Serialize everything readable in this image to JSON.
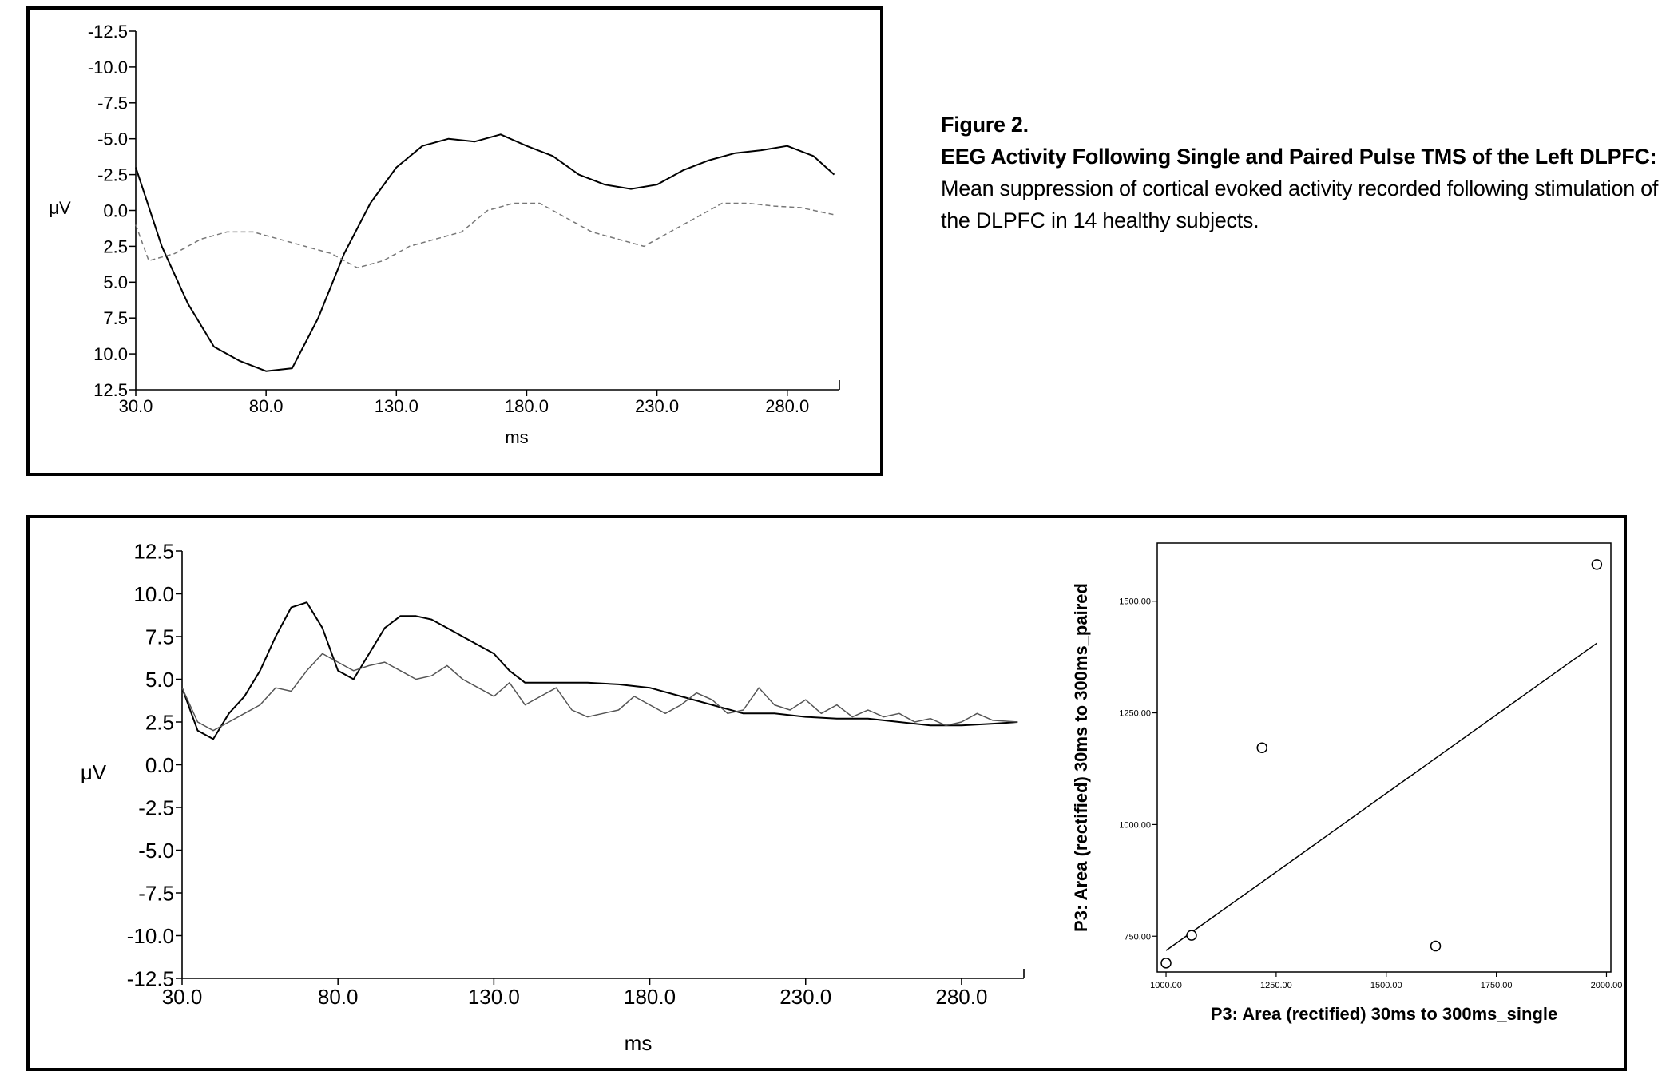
{
  "caption": {
    "figure_label": "Figure 2.",
    "title": "EEG Activity Following Single and Paired Pulse TMS of the Left DLPFC:",
    "text": "Mean suppression of cortical evoked activity recorded following stimulation of the DLPFC in 14 healthy subjects."
  },
  "chart_data": [
    {
      "type": "line",
      "xlabel": "ms",
      "ylabel": "μV",
      "xlim": [
        30,
        300
      ],
      "ylim": [
        -12.5,
        12.5
      ],
      "y_inverted": true,
      "x_ticks": [
        "30.0",
        "80.0",
        "130.0",
        "180.0",
        "230.0",
        "280.0"
      ],
      "y_ticks": [
        "-12.5",
        "-10.0",
        "-7.5",
        "-5.0",
        "-2.5",
        "0.0",
        "2.5",
        "5.0",
        "7.5",
        "10.0",
        "12.5"
      ],
      "series": [
        {
          "color": "#000000",
          "style": "solid",
          "x": [
            30,
            40,
            50,
            60,
            70,
            80,
            90,
            100,
            110,
            120,
            130,
            140,
            150,
            160,
            170,
            180,
            190,
            200,
            210,
            220,
            230,
            240,
            250,
            260,
            270,
            280,
            290,
            298
          ],
          "y": [
            -3.0,
            2.5,
            6.5,
            9.5,
            10.5,
            11.2,
            11.0,
            7.5,
            3.0,
            -0.5,
            -3.0,
            -4.5,
            -5.0,
            -4.8,
            -5.3,
            -4.5,
            -3.8,
            -2.5,
            -1.8,
            -1.5,
            -1.8,
            -2.8,
            -3.5,
            -4.0,
            -4.2,
            -4.5,
            -3.8,
            -2.5
          ]
        },
        {
          "color": "#777777",
          "style": "dashed",
          "x": [
            30,
            35,
            45,
            55,
            65,
            75,
            85,
            95,
            105,
            115,
            125,
            135,
            145,
            155,
            165,
            175,
            185,
            195,
            205,
            215,
            225,
            235,
            245,
            255,
            265,
            275,
            285,
            298
          ],
          "y": [
            1.0,
            3.5,
            3.0,
            2.0,
            1.5,
            1.5,
            2.0,
            2.5,
            3.0,
            4.0,
            3.5,
            2.5,
            2.0,
            1.5,
            0.0,
            -0.5,
            -0.5,
            0.5,
            1.5,
            2.0,
            2.5,
            1.5,
            0.5,
            -0.5,
            -0.5,
            -0.3,
            -0.2,
            0.3
          ]
        }
      ]
    },
    {
      "type": "line",
      "xlabel": "ms",
      "ylabel": "μV",
      "xlim": [
        30,
        300
      ],
      "ylim": [
        -12.5,
        12.5
      ],
      "x_ticks": [
        "30.0",
        "80.0",
        "130.0",
        "180.0",
        "230.0",
        "280.0"
      ],
      "y_ticks": [
        "12.5",
        "10.0",
        "7.5",
        "5.0",
        "2.5",
        "0.0",
        "-2.5",
        "-5.0",
        "-7.5",
        "-10.0",
        "-12.5"
      ],
      "series": [
        {
          "color": "#000000",
          "style": "solid",
          "x": [
            30,
            35,
            40,
            45,
            50,
            55,
            60,
            65,
            70,
            75,
            80,
            85,
            90,
            95,
            100,
            105,
            110,
            115,
            120,
            125,
            130,
            135,
            140,
            145,
            150,
            155,
            160,
            170,
            180,
            190,
            200,
            210,
            220,
            230,
            240,
            250,
            260,
            270,
            280,
            290,
            298
          ],
          "y": [
            4.5,
            2.0,
            1.5,
            3.0,
            4.0,
            5.5,
            7.5,
            9.2,
            9.5,
            8.0,
            5.5,
            5.0,
            6.5,
            8.0,
            8.7,
            8.7,
            8.5,
            8.0,
            7.5,
            7.0,
            6.5,
            5.5,
            4.8,
            4.8,
            4.8,
            4.8,
            4.8,
            4.7,
            4.5,
            4.0,
            3.5,
            3.0,
            3.0,
            2.8,
            2.7,
            2.7,
            2.5,
            2.3,
            2.3,
            2.4,
            2.5
          ]
        },
        {
          "color": "#555555",
          "style": "solid",
          "x": [
            30,
            35,
            40,
            45,
            50,
            55,
            60,
            65,
            70,
            75,
            80,
            85,
            90,
            95,
            100,
            105,
            110,
            115,
            120,
            125,
            130,
            135,
            140,
            145,
            150,
            155,
            160,
            165,
            170,
            175,
            180,
            185,
            190,
            195,
            200,
            205,
            210,
            215,
            220,
            225,
            230,
            235,
            240,
            245,
            250,
            255,
            260,
            265,
            270,
            275,
            280,
            285,
            290,
            298
          ],
          "y": [
            4.5,
            2.5,
            2.0,
            2.5,
            3.0,
            3.5,
            4.5,
            4.3,
            5.5,
            6.5,
            6.0,
            5.5,
            5.8,
            6.0,
            5.5,
            5.0,
            5.2,
            5.8,
            5.0,
            4.5,
            4.0,
            4.8,
            3.5,
            4.0,
            4.5,
            3.2,
            2.8,
            3.0,
            3.2,
            4.0,
            3.5,
            3.0,
            3.5,
            4.2,
            3.8,
            3.0,
            3.2,
            4.5,
            3.5,
            3.2,
            3.8,
            3.0,
            3.5,
            2.8,
            3.2,
            2.8,
            3.0,
            2.5,
            2.7,
            2.3,
            2.5,
            3.0,
            2.6,
            2.5
          ]
        }
      ]
    },
    {
      "type": "scatter",
      "xlabel": "P3: Area (rectified) 30ms to 300ms_single",
      "ylabel": "P3: Area (rectified) 30ms to 300ms_paired",
      "xlim": [
        980,
        2010
      ],
      "ylim": [
        670,
        1630
      ],
      "x_ticks": [
        1000,
        1250,
        1500,
        1750,
        2000
      ],
      "y_ticks": [
        750,
        1000,
        1250,
        1500
      ],
      "x_tick_labels": [
        "1000.00",
        "1250.00",
        "1500.00",
        "1750.00",
        "2000.00"
      ],
      "y_tick_labels": [
        "750.00",
        "1000.00",
        "1250.00",
        "1500.00"
      ],
      "points": [
        {
          "x": 1000,
          "y": 690
        },
        {
          "x": 1058,
          "y": 752
        },
        {
          "x": 1218,
          "y": 1172
        },
        {
          "x": 1612,
          "y": 728
        },
        {
          "x": 1978,
          "y": 1582
        }
      ],
      "fit_line": {
        "x": [
          1000,
          1978
        ],
        "y": [
          718,
          1406
        ]
      }
    }
  ]
}
